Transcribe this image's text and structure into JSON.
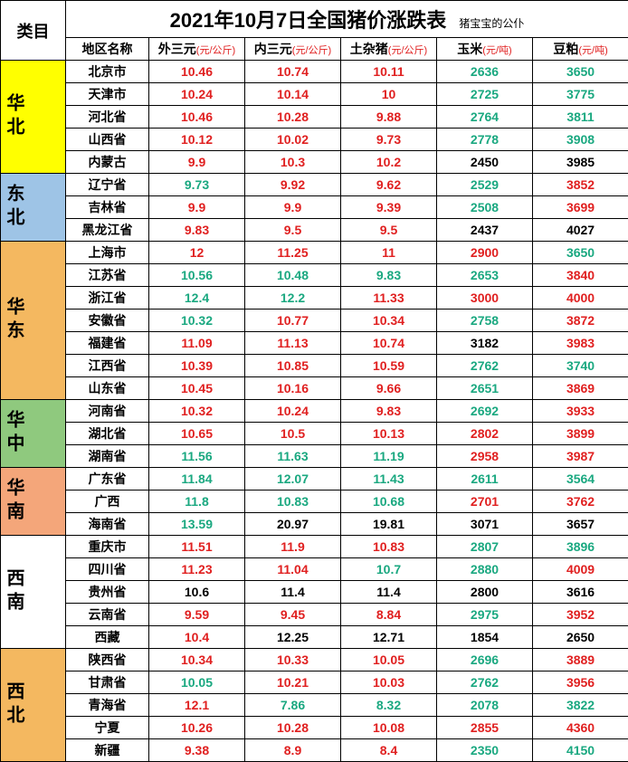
{
  "title": "2021年10月7日全国猪价涨跌表",
  "subtitle": "猪宝宝的公仆",
  "category_header": "类目",
  "columns": [
    {
      "label": "地区名称",
      "unit": ""
    },
    {
      "label": "外三元",
      "unit": "(元/公斤)"
    },
    {
      "label": "内三元",
      "unit": "(元/公斤)"
    },
    {
      "label": "土杂猪",
      "unit": "(元/公斤)"
    },
    {
      "label": "玉米",
      "unit": "(元/吨)"
    },
    {
      "label": "豆粕",
      "unit": "(元/吨)"
    }
  ],
  "regions": [
    {
      "name": "华北",
      "bg": "#ffff00",
      "rows": [
        {
          "p": "北京市",
          "v": [
            [
              "10.46",
              "r"
            ],
            [
              "10.74",
              "r"
            ],
            [
              "10.11",
              "r"
            ],
            [
              "2636",
              "g"
            ],
            [
              "3650",
              "g"
            ]
          ]
        },
        {
          "p": "天津市",
          "v": [
            [
              "10.24",
              "r"
            ],
            [
              "10.14",
              "r"
            ],
            [
              "10",
              "r"
            ],
            [
              "2725",
              "g"
            ],
            [
              "3775",
              "g"
            ]
          ]
        },
        {
          "p": "河北省",
          "v": [
            [
              "10.46",
              "r"
            ],
            [
              "10.28",
              "r"
            ],
            [
              "9.88",
              "r"
            ],
            [
              "2764",
              "g"
            ],
            [
              "3811",
              "g"
            ]
          ]
        },
        {
          "p": "山西省",
          "v": [
            [
              "10.12",
              "r"
            ],
            [
              "10.02",
              "r"
            ],
            [
              "9.73",
              "r"
            ],
            [
              "2778",
              "g"
            ],
            [
              "3908",
              "g"
            ]
          ]
        },
        {
          "p": "内蒙古",
          "v": [
            [
              "9.9",
              "r"
            ],
            [
              "10.3",
              "r"
            ],
            [
              "10.2",
              "r"
            ],
            [
              "2450",
              "b"
            ],
            [
              "3985",
              "b"
            ]
          ]
        }
      ]
    },
    {
      "name": "东北",
      "bg": "#9ec4e6",
      "rows": [
        {
          "p": "辽宁省",
          "v": [
            [
              "9.73",
              "g"
            ],
            [
              "9.92",
              "r"
            ],
            [
              "9.62",
              "r"
            ],
            [
              "2529",
              "g"
            ],
            [
              "3852",
              "r"
            ]
          ]
        },
        {
          "p": "吉林省",
          "v": [
            [
              "9.9",
              "r"
            ],
            [
              "9.9",
              "r"
            ],
            [
              "9.39",
              "r"
            ],
            [
              "2508",
              "g"
            ],
            [
              "3699",
              "r"
            ]
          ]
        },
        {
          "p": "黑龙江省",
          "v": [
            [
              "9.83",
              "r"
            ],
            [
              "9.5",
              "r"
            ],
            [
              "9.5",
              "r"
            ],
            [
              "2437",
              "b"
            ],
            [
              "4027",
              "b"
            ]
          ]
        }
      ]
    },
    {
      "name": "华东",
      "bg": "#f4b860",
      "rows": [
        {
          "p": "上海市",
          "v": [
            [
              "12",
              "r"
            ],
            [
              "11.25",
              "r"
            ],
            [
              "11",
              "r"
            ],
            [
              "2900",
              "r"
            ],
            [
              "3650",
              "g"
            ]
          ]
        },
        {
          "p": "江苏省",
          "v": [
            [
              "10.56",
              "g"
            ],
            [
              "10.48",
              "g"
            ],
            [
              "9.83",
              "g"
            ],
            [
              "2653",
              "g"
            ],
            [
              "3840",
              "r"
            ]
          ]
        },
        {
          "p": "浙江省",
          "v": [
            [
              "12.4",
              "g"
            ],
            [
              "12.2",
              "g"
            ],
            [
              "11.33",
              "r"
            ],
            [
              "3000",
              "r"
            ],
            [
              "4000",
              "r"
            ]
          ]
        },
        {
          "p": "安徽省",
          "v": [
            [
              "10.32",
              "g"
            ],
            [
              "10.77",
              "r"
            ],
            [
              "10.34",
              "r"
            ],
            [
              "2758",
              "g"
            ],
            [
              "3872",
              "r"
            ]
          ]
        },
        {
          "p": "福建省",
          "v": [
            [
              "11.09",
              "r"
            ],
            [
              "11.13",
              "r"
            ],
            [
              "10.74",
              "r"
            ],
            [
              "3182",
              "b"
            ],
            [
              "3983",
              "r"
            ]
          ]
        },
        {
          "p": "江西省",
          "v": [
            [
              "10.39",
              "r"
            ],
            [
              "10.85",
              "r"
            ],
            [
              "10.59",
              "r"
            ],
            [
              "2762",
              "g"
            ],
            [
              "3740",
              "g"
            ]
          ]
        },
        {
          "p": "山东省",
          "v": [
            [
              "10.45",
              "r"
            ],
            [
              "10.16",
              "r"
            ],
            [
              "9.66",
              "r"
            ],
            [
              "2651",
              "g"
            ],
            [
              "3869",
              "r"
            ]
          ]
        }
      ]
    },
    {
      "name": "华中",
      "bg": "#8fc97e",
      "rows": [
        {
          "p": "河南省",
          "v": [
            [
              "10.32",
              "r"
            ],
            [
              "10.24",
              "r"
            ],
            [
              "9.83",
              "r"
            ],
            [
              "2692",
              "g"
            ],
            [
              "3933",
              "r"
            ]
          ]
        },
        {
          "p": "湖北省",
          "v": [
            [
              "10.65",
              "r"
            ],
            [
              "10.5",
              "r"
            ],
            [
              "10.13",
              "r"
            ],
            [
              "2802",
              "r"
            ],
            [
              "3899",
              "r"
            ]
          ]
        },
        {
          "p": "湖南省",
          "v": [
            [
              "11.56",
              "g"
            ],
            [
              "11.63",
              "g"
            ],
            [
              "11.19",
              "g"
            ],
            [
              "2958",
              "r"
            ],
            [
              "3987",
              "r"
            ]
          ]
        }
      ]
    },
    {
      "name": "华南",
      "bg": "#f4a67a",
      "rows": [
        {
          "p": "广东省",
          "v": [
            [
              "11.84",
              "g"
            ],
            [
              "12.07",
              "g"
            ],
            [
              "11.43",
              "g"
            ],
            [
              "2611",
              "g"
            ],
            [
              "3564",
              "g"
            ]
          ]
        },
        {
          "p": "广西",
          "v": [
            [
              "11.8",
              "g"
            ],
            [
              "10.83",
              "g"
            ],
            [
              "10.68",
              "g"
            ],
            [
              "2701",
              "r"
            ],
            [
              "3762",
              "r"
            ]
          ]
        },
        {
          "p": "海南省",
          "v": [
            [
              "13.59",
              "g"
            ],
            [
              "20.97",
              "b"
            ],
            [
              "19.81",
              "b"
            ],
            [
              "3071",
              "b"
            ],
            [
              "3657",
              "b"
            ]
          ]
        }
      ]
    },
    {
      "name": "西南",
      "bg": "#ffffff",
      "rows": [
        {
          "p": "重庆市",
          "v": [
            [
              "11.51",
              "r"
            ],
            [
              "11.9",
              "r"
            ],
            [
              "10.83",
              "r"
            ],
            [
              "2807",
              "g"
            ],
            [
              "3896",
              "g"
            ]
          ]
        },
        {
          "p": "四川省",
          "v": [
            [
              "11.23",
              "r"
            ],
            [
              "11.04",
              "r"
            ],
            [
              "10.7",
              "g"
            ],
            [
              "2880",
              "g"
            ],
            [
              "4009",
              "r"
            ]
          ]
        },
        {
          "p": "贵州省",
          "v": [
            [
              "10.6",
              "b"
            ],
            [
              "11.4",
              "b"
            ],
            [
              "11.4",
              "b"
            ],
            [
              "2800",
              "b"
            ],
            [
              "3616",
              "b"
            ]
          ]
        },
        {
          "p": "云南省",
          "v": [
            [
              "9.59",
              "r"
            ],
            [
              "9.45",
              "r"
            ],
            [
              "8.84",
              "r"
            ],
            [
              "2975",
              "g"
            ],
            [
              "3952",
              "r"
            ]
          ]
        },
        {
          "p": "西藏",
          "v": [
            [
              "10.4",
              "r"
            ],
            [
              "12.25",
              "b"
            ],
            [
              "12.71",
              "b"
            ],
            [
              "1854",
              "b"
            ],
            [
              "2650",
              "b"
            ]
          ]
        }
      ]
    },
    {
      "name": "西北",
      "bg": "#f4b860",
      "rows": [
        {
          "p": "陕西省",
          "v": [
            [
              "10.34",
              "r"
            ],
            [
              "10.33",
              "r"
            ],
            [
              "10.05",
              "r"
            ],
            [
              "2696",
              "g"
            ],
            [
              "3889",
              "r"
            ]
          ]
        },
        {
          "p": "甘肃省",
          "v": [
            [
              "10.05",
              "g"
            ],
            [
              "10.21",
              "r"
            ],
            [
              "10.03",
              "r"
            ],
            [
              "2762",
              "g"
            ],
            [
              "3956",
              "r"
            ]
          ]
        },
        {
          "p": "青海省",
          "v": [
            [
              "12.1",
              "r"
            ],
            [
              "7.86",
              "g"
            ],
            [
              "8.32",
              "g"
            ],
            [
              "2078",
              "g"
            ],
            [
              "3822",
              "g"
            ]
          ]
        },
        {
          "p": "宁夏",
          "v": [
            [
              "10.26",
              "r"
            ],
            [
              "10.28",
              "r"
            ],
            [
              "10.08",
              "r"
            ],
            [
              "2855",
              "r"
            ],
            [
              "4360",
              "r"
            ]
          ]
        },
        {
          "p": "新疆",
          "v": [
            [
              "9.38",
              "r"
            ],
            [
              "8.9",
              "r"
            ],
            [
              "8.4",
              "r"
            ],
            [
              "2350",
              "g"
            ],
            [
              "4150",
              "g"
            ]
          ]
        }
      ]
    }
  ]
}
